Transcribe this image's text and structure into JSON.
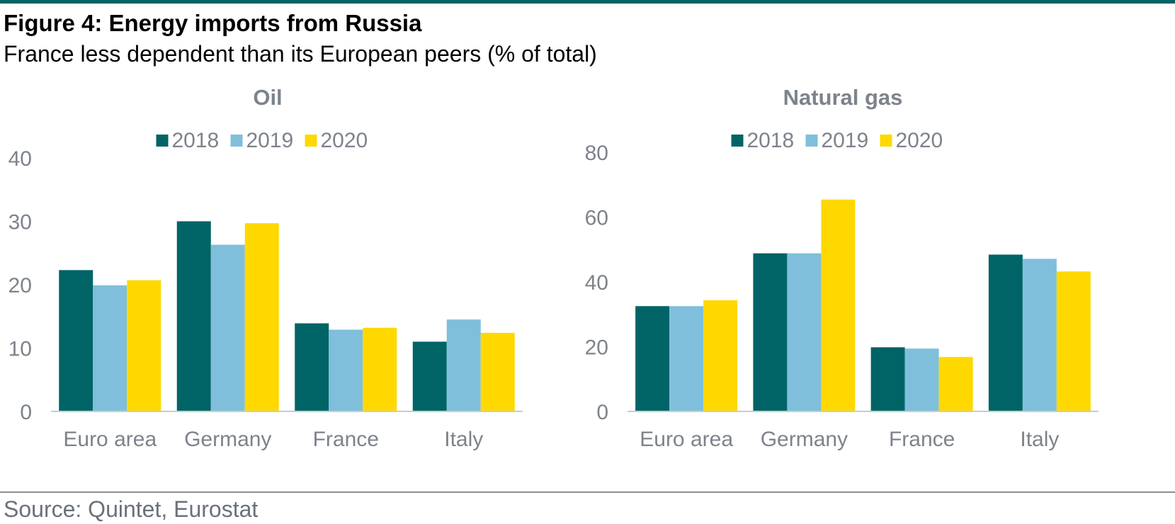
{
  "header": {
    "title": "Figure 4: Energy imports from Russia",
    "subtitle": "France less dependent than its European peers (% of total)"
  },
  "footer": {
    "source": "Source: Quintet, Eurostat"
  },
  "colors": {
    "2018": "#006466",
    "2019": "#7fbfdb",
    "2020": "#ffd800",
    "axis_text": "#8a8f96",
    "accent": "#006466"
  },
  "chart_data": [
    {
      "type": "bar",
      "title": "Oil",
      "categories": [
        "Euro area",
        "Germany",
        "France",
        "Italy"
      ],
      "series": [
        {
          "name": "2018",
          "values": [
            22.3,
            30.0,
            13.9,
            11.0
          ]
        },
        {
          "name": "2019",
          "values": [
            19.9,
            26.3,
            12.9,
            14.5
          ]
        },
        {
          "name": "2020",
          "values": [
            20.7,
            29.7,
            13.2,
            12.4
          ]
        }
      ],
      "ylim": [
        0,
        40
      ],
      "yticks": [
        0,
        10,
        20,
        30,
        40
      ],
      "legend": "top-center",
      "grid": false
    },
    {
      "type": "bar",
      "title": "Natural gas",
      "categories": [
        "Euro area",
        "Germany",
        "France",
        "Italy"
      ],
      "series": [
        {
          "name": "2018",
          "values": [
            32.5,
            48.8,
            19.8,
            48.4
          ]
        },
        {
          "name": "2019",
          "values": [
            32.5,
            48.8,
            19.4,
            47.1
          ]
        },
        {
          "name": "2020",
          "values": [
            34.3,
            65.4,
            16.8,
            43.2
          ]
        }
      ],
      "ylim": [
        0,
        80
      ],
      "yticks": [
        0,
        20,
        40,
        60,
        80
      ],
      "legend": "top-center",
      "grid": false
    }
  ]
}
